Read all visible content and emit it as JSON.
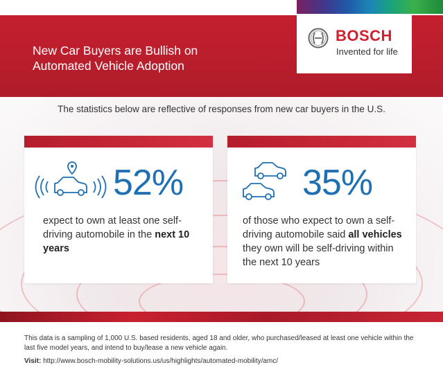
{
  "header": {
    "headline_line1": "New Car Buyers are Bullish on",
    "headline_line2": "Automated Vehicle Adoption",
    "brand": "BOSCH",
    "tagline": "Invented for life",
    "colors": {
      "red": "#c8202f",
      "blue": "#1f6fb3"
    }
  },
  "subtitle": "The statistics below are reflective of responses from new car buyers in the U.S.",
  "stats": [
    {
      "icon": "connected-car-icon",
      "percent": "52%",
      "text_pre": "expect to own at least one self-driving automobile in the",
      "text_bold": "next 10 years",
      "text_post": ""
    },
    {
      "icon": "two-cars-icon",
      "percent": "35%",
      "text_pre": "of those who expect to own a self-driving automobile said",
      "text_bold": "all vehicles",
      "text_post": "they own will be self-driving within the next 10 years"
    }
  ],
  "footer": {
    "note": "This data is a sampling of 1,000 U.S. based residents, aged 18 and older, who purchased/leased at least one vehicle within the last five model years, and intend to buy/lease a new vehicle again.",
    "visit_label": "Visit:",
    "visit_url": "http://www.bosch-mobility-solutions.us/us/highlights/automated-mobility/amc/"
  }
}
